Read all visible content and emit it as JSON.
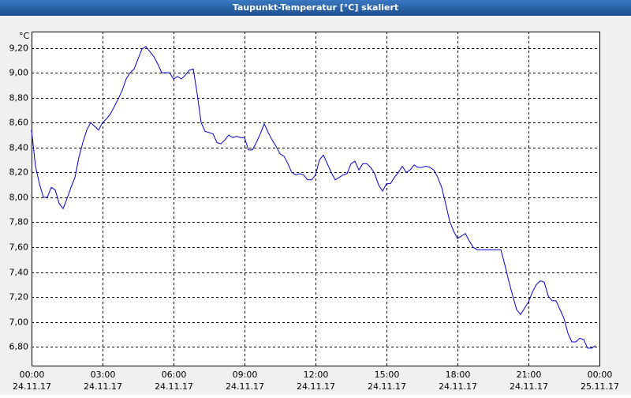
{
  "chart_data": {
    "type": "line",
    "title": "Taupunkt-Temperatur [°C] skaliert",
    "y_unit": "°C",
    "x": [
      0,
      10,
      20,
      30,
      40,
      50,
      60,
      70,
      80,
      90,
      100,
      110,
      120,
      130,
      140,
      150,
      160,
      170,
      180,
      190,
      200,
      210,
      220,
      230,
      240,
      250,
      260,
      270,
      280,
      290,
      300,
      310,
      320,
      330,
      340,
      350,
      360,
      370,
      380,
      390,
      400,
      410,
      420,
      430,
      440,
      450,
      460,
      470,
      480,
      490,
      500,
      510,
      520,
      530,
      540,
      550,
      560,
      570,
      580,
      590,
      600,
      610,
      620,
      630,
      640,
      650,
      660,
      670,
      680,
      690,
      700,
      710,
      720,
      730,
      740,
      750,
      760,
      770,
      780,
      790,
      800,
      810,
      820,
      830,
      840,
      850,
      860,
      870,
      880,
      890,
      900,
      910,
      920,
      930,
      940,
      950,
      960,
      970,
      980,
      990,
      1000,
      1010,
      1020,
      1030,
      1040,
      1050,
      1060,
      1070,
      1080,
      1090,
      1100,
      1110,
      1120,
      1130,
      1140,
      1150,
      1160,
      1170,
      1180,
      1190,
      1200,
      1210,
      1220,
      1230,
      1240,
      1250,
      1260,
      1270,
      1280,
      1290,
      1300,
      1310,
      1320,
      1330,
      1340,
      1350,
      1360,
      1370,
      1380,
      1390,
      1400,
      1410,
      1420,
      1430
    ],
    "series": [
      {
        "color": "#0000cc",
        "values": [
          8.54,
          8.25,
          8.11,
          8.0,
          8.0,
          8.08,
          8.06,
          7.95,
          7.91,
          7.99,
          8.08,
          8.16,
          8.32,
          8.44,
          8.54,
          8.6,
          8.57,
          8.54,
          8.6,
          8.63,
          8.67,
          8.73,
          8.79,
          8.86,
          8.95,
          9.0,
          9.03,
          9.11,
          9.19,
          9.21,
          9.17,
          9.13,
          9.07,
          9.0,
          9.0,
          9.0,
          8.95,
          8.97,
          8.95,
          8.98,
          9.02,
          9.03,
          8.83,
          8.6,
          8.53,
          8.52,
          8.51,
          8.44,
          8.43,
          8.46,
          8.5,
          8.48,
          8.49,
          8.48,
          8.48,
          8.38,
          8.38,
          8.44,
          8.51,
          8.59,
          8.52,
          8.46,
          8.41,
          8.35,
          8.33,
          8.27,
          8.2,
          8.18,
          8.19,
          8.18,
          8.14,
          8.14,
          8.18,
          8.3,
          8.34,
          8.27,
          8.2,
          8.14,
          8.16,
          8.18,
          8.19,
          8.27,
          8.29,
          8.22,
          8.27,
          8.27,
          8.24,
          8.19,
          8.1,
          8.05,
          8.11,
          8.11,
          8.16,
          8.2,
          8.25,
          8.2,
          8.22,
          8.26,
          8.24,
          8.24,
          8.25,
          8.24,
          8.22,
          8.16,
          8.08,
          7.95,
          7.81,
          7.73,
          7.67,
          7.69,
          7.71,
          7.65,
          7.6,
          7.58,
          7.58,
          7.58,
          7.58,
          7.58,
          7.58,
          7.58,
          7.46,
          7.33,
          7.21,
          7.1,
          7.06,
          7.11,
          7.16,
          7.24,
          7.3,
          7.33,
          7.32,
          7.21,
          7.17,
          7.17,
          7.1,
          7.03,
          6.91,
          6.84,
          6.84,
          6.87,
          6.86,
          6.79,
          6.79,
          6.81
        ]
      }
    ],
    "xlim": [
      0,
      1440
    ],
    "xticks": [
      {
        "value": 0,
        "label": [
          "00:00",
          "24.11.17"
        ]
      },
      {
        "value": 180,
        "label": [
          "03:00",
          "24.11.17"
        ]
      },
      {
        "value": 360,
        "label": [
          "06:00",
          "24.11.17"
        ]
      },
      {
        "value": 540,
        "label": [
          "09:00",
          "24.11.17"
        ]
      },
      {
        "value": 720,
        "label": [
          "12:00",
          "24.11.17"
        ]
      },
      {
        "value": 900,
        "label": [
          "15:00",
          "24.11.17"
        ]
      },
      {
        "value": 1080,
        "label": [
          "18:00",
          "24.11.17"
        ]
      },
      {
        "value": 1260,
        "label": [
          "21:00",
          "24.11.17"
        ]
      },
      {
        "value": 1440,
        "label": [
          "00:00",
          "25.11.17"
        ]
      }
    ],
    "ylim": [
      6.65,
      9.33
    ],
    "yticks": [
      {
        "value": 6.8,
        "label": "6,80"
      },
      {
        "value": 7.0,
        "label": "7,00"
      },
      {
        "value": 7.2,
        "label": "7,20"
      },
      {
        "value": 7.4,
        "label": "7,40"
      },
      {
        "value": 7.6,
        "label": "7,60"
      },
      {
        "value": 7.8,
        "label": "7,80"
      },
      {
        "value": 8.0,
        "label": "8,00"
      },
      {
        "value": 8.2,
        "label": "8,20"
      },
      {
        "value": 8.4,
        "label": "8,40"
      },
      {
        "value": 8.6,
        "label": "8,60"
      },
      {
        "value": 8.8,
        "label": "8,80"
      },
      {
        "value": 9.0,
        "label": "9,00"
      },
      {
        "value": 9.2,
        "label": "9,20"
      }
    ],
    "grid": true
  }
}
